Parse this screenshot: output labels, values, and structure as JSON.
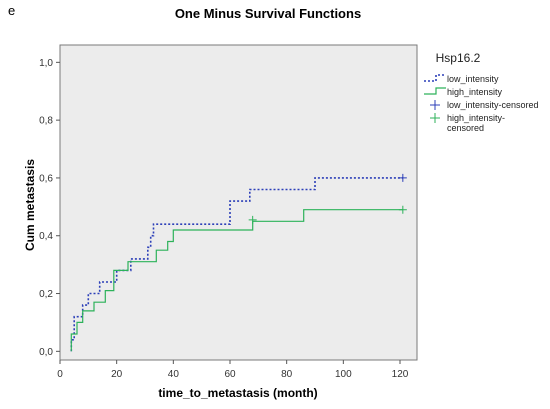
{
  "panel_letter": "e",
  "chart_data": {
    "type": "line",
    "title": "One Minus Survival Functions",
    "xlabel": "time_to_metastasis (month)",
    "ylabel": "Cum metastasis",
    "xlim": [
      0,
      126
    ],
    "ylim": [
      -0.03,
      1.06
    ],
    "x_ticks": [
      0,
      20,
      40,
      60,
      80,
      100,
      120
    ],
    "x_tick_labels": [
      "0",
      "20",
      "40",
      "60",
      "80",
      "100",
      "120"
    ],
    "y_ticks": [
      0,
      0.2,
      0.4,
      0.6,
      0.8,
      1.0
    ],
    "y_tick_labels": [
      "0,0",
      "0,2",
      "0,4",
      "0,6",
      "0,8",
      "1,0"
    ],
    "grid": false,
    "background": "#ececec",
    "legend": {
      "title": "Hsp16.2",
      "placement": "right",
      "entries": [
        {
          "label": "low_intensity",
          "kind": "line",
          "color": "#2c3fb8"
        },
        {
          "label": "high_intensity",
          "kind": "line",
          "color": "#2db25a"
        },
        {
          "label": "low_intensity-censored",
          "kind": "marker",
          "color": "#2c3fb8"
        },
        {
          "label": "high_intensity-\ncensored",
          "kind": "marker",
          "color": "#2db25a"
        }
      ]
    },
    "series": [
      {
        "name": "low_intensity",
        "color": "#2c3fb8",
        "style": "dotted",
        "steps": [
          [
            4,
            0.0
          ],
          [
            4,
            0.04
          ],
          [
            5,
            0.12
          ],
          [
            8,
            0.16
          ],
          [
            10,
            0.2
          ],
          [
            14,
            0.24
          ],
          [
            20,
            0.28
          ],
          [
            25,
            0.32
          ],
          [
            31,
            0.36
          ],
          [
            32,
            0.4
          ],
          [
            33,
            0.44
          ],
          [
            60,
            0.52
          ],
          [
            67,
            0.56
          ],
          [
            90,
            0.6
          ],
          [
            121,
            0.6
          ]
        ],
        "censored": [
          [
            121,
            0.6
          ]
        ]
      },
      {
        "name": "high_intensity",
        "color": "#2db25a",
        "style": "solid",
        "steps": [
          [
            4,
            0.0
          ],
          [
            4,
            0.06
          ],
          [
            6,
            0.1
          ],
          [
            8,
            0.14
          ],
          [
            12,
            0.17
          ],
          [
            16,
            0.21
          ],
          [
            19,
            0.28
          ],
          [
            24,
            0.31
          ],
          [
            34,
            0.35
          ],
          [
            38,
            0.38
          ],
          [
            40,
            0.42
          ],
          [
            68,
            0.45
          ],
          [
            86,
            0.49
          ],
          [
            121,
            0.49
          ]
        ],
        "censored": [
          [
            68,
            0.455
          ],
          [
            121,
            0.49
          ]
        ]
      }
    ]
  }
}
